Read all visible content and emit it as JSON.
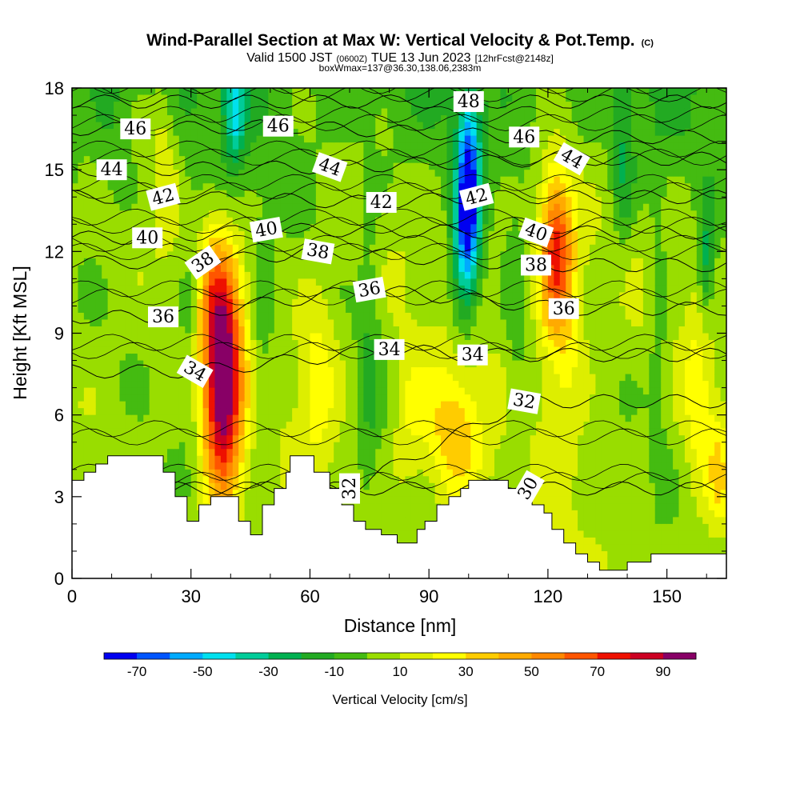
{
  "chart_data": {
    "type": "heatmap",
    "title": "Wind-Parallel Section at Max W: Vertical Velocity & Pot.Temp.",
    "title_mark": "(C)",
    "subtitle_parts": [
      "Valid 1500 JST",
      "(0600Z)",
      "TUE 13 Jun 2023",
      "[12hrFcst@2148z]"
    ],
    "box_text": "boxWmax=137@36.30,138.06,2383m",
    "xlabel": "Distance [nm]",
    "ylabel": "Height [Kft MSL]",
    "xlim": [
      0,
      165
    ],
    "ylim": [
      0,
      18
    ],
    "x_ticks": [
      0,
      30,
      60,
      90,
      120,
      150
    ],
    "y_ticks": [
      0,
      3,
      6,
      9,
      12,
      15,
      18
    ],
    "colorbar": {
      "label": "Vertical Velocity [cm/s]",
      "ticks": [
        -70,
        -50,
        -30,
        -10,
        10,
        30,
        50,
        70,
        90
      ],
      "bins": [
        -80,
        -70,
        -60,
        -50,
        -40,
        -30,
        -20,
        -10,
        0,
        10,
        20,
        30,
        40,
        50,
        60,
        70,
        80,
        90,
        100
      ],
      "colors": [
        "#0000f0",
        "#0055ff",
        "#00aaff",
        "#00e0ee",
        "#00cc99",
        "#00b050",
        "#22aa22",
        "#44bb11",
        "#99dd00",
        "#ddee00",
        "#ffff00",
        "#ffcc00",
        "#ffaa00",
        "#ff8800",
        "#ff5500",
        "#ee1100",
        "#cc0022",
        "#880066"
      ]
    },
    "theta_contours": {
      "units": "K (potential temperature label)",
      "labels": [
        {
          "value": "46",
          "x": 16,
          "y": 16.5,
          "angle": 0
        },
        {
          "value": "44",
          "x": 10,
          "y": 15.0,
          "angle": 0
        },
        {
          "value": "46",
          "x": 52,
          "y": 16.6,
          "angle": 0
        },
        {
          "value": "42",
          "x": 23,
          "y": 14.0,
          "angle": -15
        },
        {
          "value": "44",
          "x": 65,
          "y": 15.1,
          "angle": 20
        },
        {
          "value": "48",
          "x": 100,
          "y": 17.5,
          "angle": 0
        },
        {
          "value": "46",
          "x": 114,
          "y": 16.2,
          "angle": 0
        },
        {
          "value": "44",
          "x": 126,
          "y": 15.4,
          "angle": 30
        },
        {
          "value": "42",
          "x": 102,
          "y": 14.0,
          "angle": -15
        },
        {
          "value": "42",
          "x": 78,
          "y": 13.8,
          "angle": 0
        },
        {
          "value": "40",
          "x": 19,
          "y": 12.5,
          "angle": 0
        },
        {
          "value": "40",
          "x": 49,
          "y": 12.8,
          "angle": -10
        },
        {
          "value": "40",
          "x": 117,
          "y": 12.7,
          "angle": 20
        },
        {
          "value": "38",
          "x": 33,
          "y": 11.6,
          "angle": -35
        },
        {
          "value": "38",
          "x": 62,
          "y": 12.0,
          "angle": 10
        },
        {
          "value": "38",
          "x": 117,
          "y": 11.5,
          "angle": 0
        },
        {
          "value": "36",
          "x": 23,
          "y": 9.6,
          "angle": 0
        },
        {
          "value": "36",
          "x": 75,
          "y": 10.6,
          "angle": -10
        },
        {
          "value": "36",
          "x": 124,
          "y": 9.9,
          "angle": 0
        },
        {
          "value": "34",
          "x": 31,
          "y": 7.6,
          "angle": 30
        },
        {
          "value": "34",
          "x": 80,
          "y": 8.4,
          "angle": 0
        },
        {
          "value": "34",
          "x": 101,
          "y": 8.2,
          "angle": 0
        },
        {
          "value": "32",
          "x": 114,
          "y": 6.5,
          "angle": 10
        },
        {
          "value": "32",
          "x": 70,
          "y": 3.3,
          "angle": -90
        },
        {
          "value": "30",
          "x": 115,
          "y": 3.3,
          "angle": -60
        }
      ]
    },
    "w_features": [
      {
        "x": 38,
        "z": 7.0,
        "w": 100,
        "sx": 3.5,
        "sz": 2.8
      },
      {
        "x": 36,
        "z": 10.5,
        "w": 25,
        "sx": 3.5,
        "sz": 1.8
      },
      {
        "x": 122,
        "z": 12.2,
        "w": 65,
        "sx": 3.0,
        "sz": 2.0
      },
      {
        "x": 124,
        "z": 8.5,
        "w": 20,
        "sx": 4.0,
        "sz": 3.0
      },
      {
        "x": 96,
        "z": 5.2,
        "w": 32,
        "sx": 5.0,
        "sz": 1.8
      },
      {
        "x": 62,
        "z": 7.5,
        "w": 22,
        "sx": 3.5,
        "sz": 2.2
      },
      {
        "x": 23,
        "z": 16.0,
        "w": 15,
        "sx": 2.5,
        "sz": 2.0
      },
      {
        "x": 158,
        "z": 6.5,
        "w": 18,
        "sx": 2.5,
        "sz": 2.5
      },
      {
        "x": 163,
        "z": 3.8,
        "w": 22,
        "sx": 2.0,
        "sz": 1.5
      },
      {
        "x": 85,
        "z": 6.0,
        "w": 15,
        "sx": 3.0,
        "sz": 2.0
      },
      {
        "x": 100,
        "z": 14.0,
        "w": -70,
        "sx": 2.0,
        "sz": 1.6
      },
      {
        "x": 99,
        "z": 11.6,
        "w": -45,
        "sx": 2.5,
        "sz": 1.8
      },
      {
        "x": 100,
        "z": 16.5,
        "w": -30,
        "sx": 2.0,
        "sz": 1.2
      },
      {
        "x": 41,
        "z": 17.2,
        "w": -40,
        "sx": 2.0,
        "sz": 1.4
      },
      {
        "x": 30,
        "z": 10.0,
        "w": -15,
        "sx": 2.0,
        "sz": 3.0
      },
      {
        "x": 75,
        "z": 8.0,
        "w": -15,
        "sx": 2.0,
        "sz": 4.0
      },
      {
        "x": 160,
        "z": 11.5,
        "w": -30,
        "sx": 1.5,
        "sz": 1.5
      },
      {
        "x": 139,
        "z": 15.0,
        "w": -22,
        "sx": 2.0,
        "sz": 2.0
      },
      {
        "x": 48,
        "z": 9.0,
        "w": -12,
        "sx": 2.0,
        "sz": 3.0
      },
      {
        "x": 148,
        "z": 9.5,
        "w": -12,
        "sx": 2.0,
        "sz": 4.0
      },
      {
        "x": 10,
        "z": 17.0,
        "w": -10,
        "sx": 3.0,
        "sz": 2.0
      },
      {
        "x": 112,
        "z": 8.5,
        "w": -10,
        "sx": 2.0,
        "sz": 3.0
      }
    ],
    "terrain": [
      [
        0,
        3.6
      ],
      [
        3,
        3.6
      ],
      [
        3,
        3.9
      ],
      [
        6,
        3.9
      ],
      [
        6,
        4.2
      ],
      [
        9,
        4.2
      ],
      [
        9,
        4.5
      ],
      [
        20,
        4.5
      ],
      [
        20,
        4.5
      ],
      [
        23,
        4.5
      ],
      [
        23,
        3.9
      ],
      [
        26,
        3.9
      ],
      [
        26,
        3.0
      ],
      [
        29,
        3.0
      ],
      [
        29,
        2.1
      ],
      [
        32,
        2.1
      ],
      [
        32,
        2.7
      ],
      [
        35,
        2.7
      ],
      [
        35,
        3.0
      ],
      [
        42,
        3.0
      ],
      [
        42,
        2.1
      ],
      [
        45,
        2.1
      ],
      [
        45,
        1.6
      ],
      [
        48,
        1.6
      ],
      [
        48,
        2.7
      ],
      [
        51,
        2.7
      ],
      [
        51,
        3.3
      ],
      [
        54,
        3.3
      ],
      [
        54,
        3.9
      ],
      [
        55,
        3.9
      ],
      [
        55,
        4.5
      ],
      [
        61,
        4.5
      ],
      [
        61,
        3.9
      ],
      [
        65,
        3.9
      ],
      [
        65,
        3.3
      ],
      [
        68,
        3.3
      ],
      [
        68,
        2.7
      ],
      [
        71,
        2.7
      ],
      [
        71,
        2.1
      ],
      [
        74,
        2.1
      ],
      [
        74,
        1.8
      ],
      [
        78,
        1.8
      ],
      [
        78,
        1.6
      ],
      [
        82,
        1.6
      ],
      [
        82,
        1.3
      ],
      [
        87,
        1.3
      ],
      [
        87,
        1.8
      ],
      [
        89,
        1.8
      ],
      [
        89,
        2.1
      ],
      [
        92,
        2.1
      ],
      [
        92,
        2.7
      ],
      [
        95,
        2.7
      ],
      [
        95,
        3.0
      ],
      [
        98,
        3.0
      ],
      [
        98,
        3.3
      ],
      [
        100,
        3.3
      ],
      [
        100,
        3.6
      ],
      [
        110,
        3.6
      ],
      [
        110,
        3.3
      ],
      [
        113,
        3.3
      ],
      [
        113,
        3.0
      ],
      [
        116,
        3.0
      ],
      [
        116,
        2.7
      ],
      [
        119,
        2.7
      ],
      [
        119,
        2.4
      ],
      [
        121,
        2.4
      ],
      [
        121,
        1.8
      ],
      [
        124,
        1.8
      ],
      [
        124,
        1.3
      ],
      [
        127,
        1.3
      ],
      [
        127,
        0.9
      ],
      [
        130,
        0.9
      ],
      [
        130,
        0.6
      ],
      [
        133,
        0.6
      ],
      [
        133,
        0.3
      ],
      [
        140,
        0.3
      ],
      [
        140,
        0.6
      ],
      [
        146,
        0.6
      ],
      [
        146,
        0.9
      ],
      [
        165,
        0.9
      ]
    ]
  }
}
